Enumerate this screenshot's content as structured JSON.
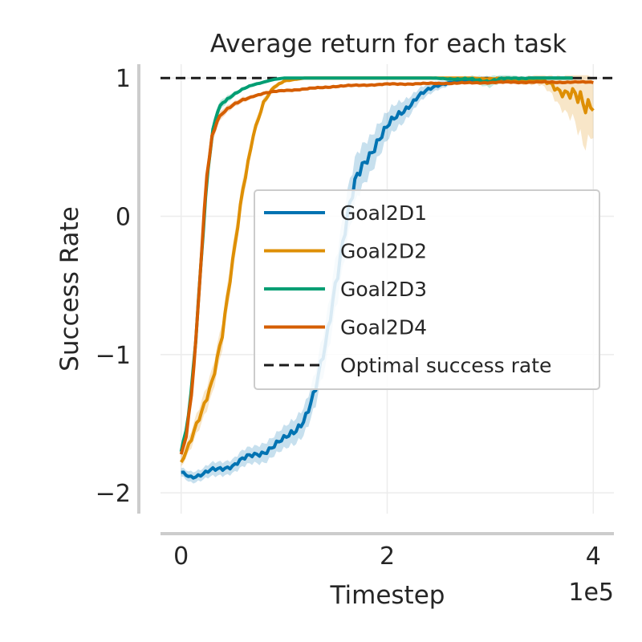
{
  "chart_data": {
    "type": "line",
    "title": "Average return for each task",
    "xlabel": "Timestep",
    "ylabel": "Success Rate",
    "x_offset_label": "1e5",
    "xlim": [
      -0.2,
      4.2
    ],
    "ylim": [
      -2.15,
      1.1
    ],
    "xticks": [
      {
        "value": 0,
        "label": "0"
      },
      {
        "value": 2,
        "label": "2"
      },
      {
        "value": 4,
        "label": "4"
      }
    ],
    "yticks": [
      {
        "value": -2,
        "label": "−2"
      },
      {
        "value": -1,
        "label": "−1"
      },
      {
        "value": 0,
        "label": "0"
      },
      {
        "value": 1,
        "label": "1"
      }
    ],
    "grid": true,
    "legend_position": "center-right",
    "reference_line": {
      "name": "Optimal success rate",
      "y": 1.0,
      "color": "#1a1a1a",
      "style": "dashed"
    },
    "series": [
      {
        "name": "Goal2D1",
        "color": "#0173b2",
        "x": [
          0.0,
          0.1,
          0.2,
          0.3,
          0.4,
          0.5,
          0.6,
          0.7,
          0.8,
          0.9,
          1.0,
          1.1,
          1.2,
          1.3,
          1.4,
          1.5,
          1.6,
          1.7,
          1.8,
          1.9,
          2.0,
          2.1,
          2.2,
          2.3,
          2.4,
          2.5,
          2.6,
          2.8,
          3.0,
          3.2,
          3.4,
          3.6,
          3.8
        ],
        "y": [
          -1.85,
          -1.88,
          -1.87,
          -1.84,
          -1.82,
          -1.8,
          -1.76,
          -1.73,
          -1.7,
          -1.66,
          -1.62,
          -1.55,
          -1.45,
          -1.28,
          -0.95,
          -0.45,
          -0.05,
          0.25,
          0.42,
          0.55,
          0.64,
          0.72,
          0.8,
          0.87,
          0.91,
          0.95,
          0.97,
          0.98,
          0.99,
          0.99,
          1.0,
          1.0,
          1.0
        ],
        "band": [
          0.03,
          0.04,
          0.04,
          0.05,
          0.05,
          0.05,
          0.06,
          0.06,
          0.07,
          0.07,
          0.08,
          0.09,
          0.1,
          0.12,
          0.15,
          0.18,
          0.18,
          0.16,
          0.14,
          0.12,
          0.1,
          0.09,
          0.07,
          0.05,
          0.04,
          0.03,
          0.02,
          0.01,
          0.01,
          0.01,
          0.0,
          0.0,
          0.0
        ]
      },
      {
        "name": "Goal2D2",
        "color": "#de8f05",
        "x": [
          0.0,
          0.1,
          0.2,
          0.3,
          0.4,
          0.5,
          0.6,
          0.7,
          0.8,
          0.9,
          1.0,
          1.2,
          1.4,
          1.6,
          1.8,
          2.0,
          2.4,
          2.8,
          3.2,
          3.5,
          3.6,
          3.7,
          3.8,
          3.9,
          4.0
        ],
        "y": [
          -1.78,
          -1.62,
          -1.42,
          -1.18,
          -0.85,
          -0.35,
          0.2,
          0.6,
          0.82,
          0.93,
          0.98,
          1.0,
          1.0,
          1.0,
          1.0,
          1.0,
          1.0,
          1.0,
          0.99,
          0.98,
          0.96,
          0.91,
          0.86,
          0.78,
          0.84
        ],
        "band": [
          0.03,
          0.06,
          0.08,
          0.09,
          0.1,
          0.1,
          0.08,
          0.05,
          0.03,
          0.02,
          0.01,
          0.0,
          0.0,
          0.0,
          0.0,
          0.0,
          0.0,
          0.0,
          0.02,
          0.04,
          0.07,
          0.12,
          0.18,
          0.3,
          0.2
        ]
      },
      {
        "name": "Goal2D3",
        "color": "#029e73",
        "x": [
          0.0,
          0.05,
          0.1,
          0.15,
          0.2,
          0.25,
          0.3,
          0.35,
          0.4,
          0.5,
          0.6,
          0.7,
          0.8,
          0.9,
          1.0,
          1.2,
          1.4,
          1.6,
          2.0,
          2.4,
          2.8,
          3.0,
          3.2,
          3.6,
          3.8
        ],
        "y": [
          -1.7,
          -1.55,
          -1.25,
          -0.8,
          -0.25,
          0.25,
          0.58,
          0.75,
          0.82,
          0.88,
          0.92,
          0.95,
          0.97,
          0.99,
          1.0,
          1.0,
          1.0,
          1.0,
          1.0,
          1.0,
          0.99,
          0.98,
          1.0,
          1.0,
          1.0
        ],
        "band": [
          0.04,
          0.05,
          0.06,
          0.08,
          0.08,
          0.07,
          0.05,
          0.04,
          0.03,
          0.02,
          0.01,
          0.01,
          0.0,
          0.0,
          0.0,
          0.0,
          0.0,
          0.0,
          0.0,
          0.0,
          0.02,
          0.04,
          0.02,
          0.0,
          0.0
        ]
      },
      {
        "name": "Goal2D4",
        "color": "#d55e00",
        "x": [
          0.0,
          0.05,
          0.1,
          0.15,
          0.2,
          0.25,
          0.3,
          0.35,
          0.4,
          0.5,
          0.6,
          0.7,
          0.8,
          0.9,
          1.0,
          1.2,
          1.5,
          1.8,
          2.0,
          2.4,
          2.8,
          3.2,
          3.6,
          4.0
        ],
        "y": [
          -1.72,
          -1.58,
          -1.3,
          -0.85,
          -0.25,
          0.3,
          0.58,
          0.7,
          0.75,
          0.8,
          0.84,
          0.87,
          0.89,
          0.9,
          0.91,
          0.92,
          0.94,
          0.95,
          0.955,
          0.96,
          0.965,
          0.97,
          0.97,
          0.97
        ],
        "band": [
          0.04,
          0.05,
          0.06,
          0.08,
          0.08,
          0.07,
          0.05,
          0.04,
          0.03,
          0.02,
          0.02,
          0.01,
          0.01,
          0.01,
          0.01,
          0.01,
          0.01,
          0.01,
          0.01,
          0.01,
          0.01,
          0.01,
          0.01,
          0.01
        ]
      }
    ]
  },
  "colors": {
    "spine": "#cccccc",
    "grid": "#ececec",
    "text": "#262626",
    "legend_border": "#cccccc"
  }
}
